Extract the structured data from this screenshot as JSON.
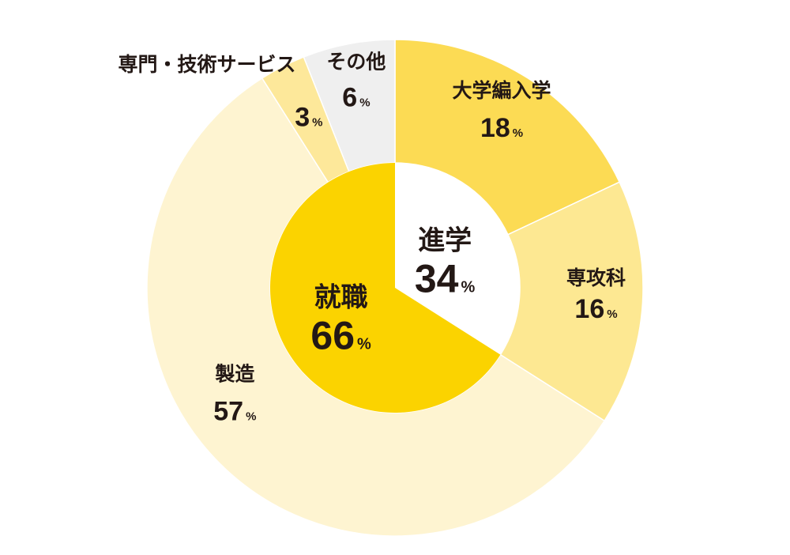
{
  "chart_data": {
    "type": "pie",
    "variant": "nested-donut",
    "inner": [
      {
        "label": "進学",
        "value": 34,
        "unit": "%",
        "color": "#ffffff",
        "text_color": "#f5c800"
      },
      {
        "label": "就職",
        "value": 66,
        "unit": "%",
        "color": "#fbd300",
        "text_color": "#ffffff"
      }
    ],
    "outer": [
      {
        "label": "大学編入学",
        "value": 18,
        "unit": "%",
        "color": "#fcdb54",
        "parent": "進学"
      },
      {
        "label": "専攻科",
        "value": 16,
        "unit": "%",
        "color": "#fde892",
        "parent": "進学"
      },
      {
        "label": "製造",
        "value": 57,
        "unit": "%",
        "color": "#fef4d1",
        "parent": "就職"
      },
      {
        "label": "専門・技術サービス",
        "value": 3,
        "unit": "%",
        "color": "#fde89a",
        "parent": "就職"
      },
      {
        "label": "その他",
        "value": 6,
        "unit": "%",
        "color": "#efefef",
        "parent": "就職"
      }
    ],
    "start": "12 o'clock",
    "direction": "clockwise"
  }
}
